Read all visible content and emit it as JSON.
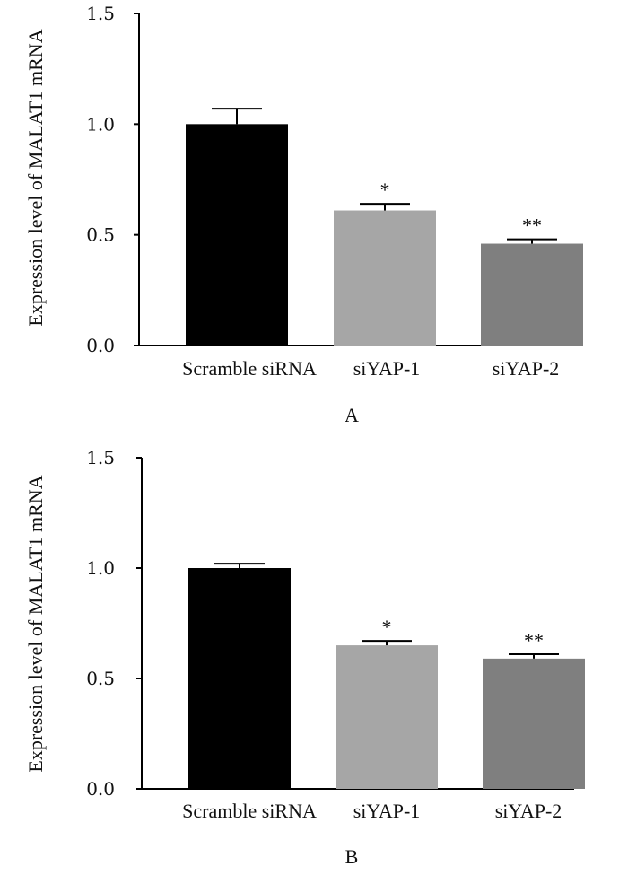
{
  "chart_data": [
    {
      "type": "bar",
      "panel_label": "A",
      "title": "",
      "xlabel": "",
      "ylabel": "Expression level of MALAT1 mRNA",
      "ylim": [
        0,
        1.5
      ],
      "yticks": [
        0.0,
        0.5,
        1.0,
        1.5
      ],
      "ytick_labels": [
        "0.0",
        "0.5",
        "1.0",
        "1.5"
      ],
      "categories": [
        "Scramble siRNA",
        "siYAP-1",
        "siYAP-2"
      ],
      "values": [
        1.0,
        0.61,
        0.46
      ],
      "errors": [
        0.07,
        0.03,
        0.02
      ],
      "significance": [
        "",
        "*",
        "**"
      ],
      "colors": [
        "#000000",
        "#a6a6a6",
        "#7f7f7f"
      ]
    },
    {
      "type": "bar",
      "panel_label": "B",
      "title": "",
      "xlabel": "",
      "ylabel": "Expression level of MALAT1 mRNA",
      "ylim": [
        0,
        1.5
      ],
      "yticks": [
        0.0,
        0.5,
        1.0,
        1.5
      ],
      "ytick_labels": [
        "0.0",
        "0.5",
        "1.0",
        "1.5"
      ],
      "categories": [
        "Scramble siRNA",
        "siYAP-1",
        "siYAP-2"
      ],
      "values": [
        1.0,
        0.65,
        0.59
      ],
      "errors": [
        0.02,
        0.02,
        0.02
      ],
      "significance": [
        "",
        "*",
        "**"
      ],
      "colors": [
        "#000000",
        "#a6a6a6",
        "#7f7f7f"
      ]
    }
  ]
}
